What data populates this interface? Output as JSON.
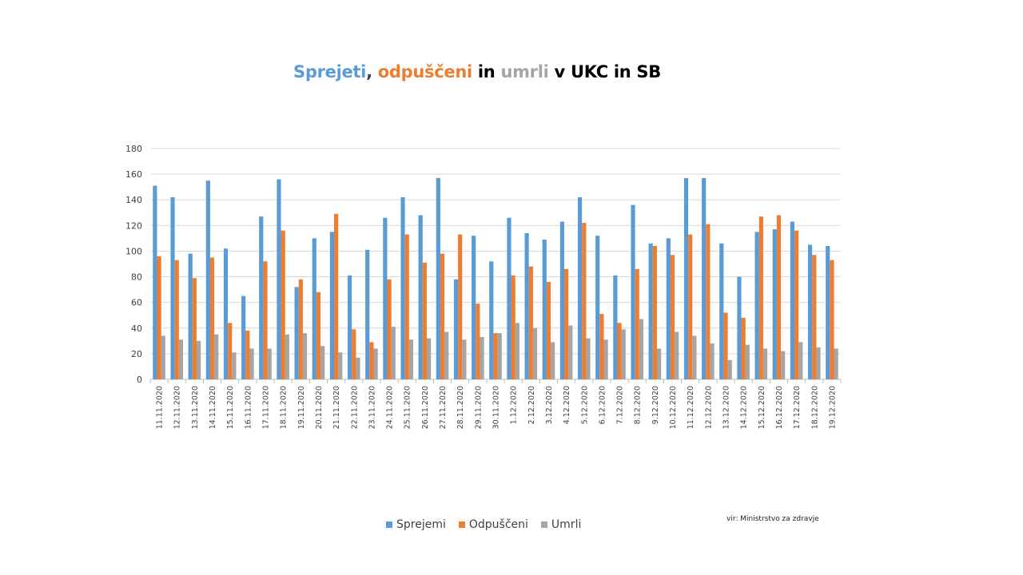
{
  "title_parts": [
    {
      "text": "Sprejeti",
      "color": "#5b9bd5"
    },
    {
      "text": ", ",
      "color": "#404040"
    },
    {
      "text": "odpuščeni",
      "color": "#ed7d31"
    },
    {
      "text": " in ",
      "color": "#000000"
    },
    {
      "text": "umrli",
      "color": "#a5a5a5"
    },
    {
      "text": " v UKC in SB",
      "color": "#000000"
    }
  ],
  "source": "vir: Ministrstvo za zdravje",
  "chart_data": {
    "type": "bar",
    "title": "Sprejeti, odpuščeni in umrli v UKC in SB",
    "xlabel": "",
    "ylabel": "",
    "ylim": [
      0,
      180
    ],
    "yticks": [
      0,
      20,
      40,
      60,
      80,
      100,
      120,
      140,
      160,
      180
    ],
    "grid": true,
    "legend": "bottom",
    "categories": [
      "11.11.2020",
      "12.11.2020",
      "13.11.2020",
      "14.11.2020",
      "15.11.2020",
      "16.11.2020",
      "17.11.2020",
      "18.11.2020",
      "19.11.2020",
      "20.11.2020",
      "21.11.2020",
      "22.11.2020",
      "23.11.2020",
      "24.11.2020",
      "25.11.2020",
      "26.11.2020",
      "27.11.2020",
      "28.11.2020",
      "29.11.2020",
      "30.11.2020",
      "1.12.2020",
      "2.12.2020",
      "3.12.2020",
      "4.12.2020",
      "5.12.2020",
      "6.12.2020",
      "7.12.2020",
      "8.12.2020",
      "9.12.2020",
      "10.12.2020",
      "11.12.2020",
      "12.12.2020",
      "13.12.2020",
      "14.12.2020",
      "15.12.2020",
      "16.12.2020",
      "17.12.2020",
      "18.12.2020",
      "19.12.2020"
    ],
    "series": [
      {
        "name": "Sprejemi",
        "color": "#5b9bd5",
        "values": [
          151,
          142,
          98,
          155,
          102,
          65,
          127,
          156,
          72,
          110,
          115,
          81,
          101,
          126,
          142,
          128,
          157,
          78,
          112,
          92,
          126,
          114,
          109,
          123,
          142,
          112,
          81,
          136,
          106,
          110,
          157,
          157,
          106,
          80,
          115,
          117,
          123,
          105,
          104
        ]
      },
      {
        "name": "Odpuščeni",
        "color": "#ed7d31",
        "values": [
          96,
          93,
          79,
          95,
          44,
          38,
          92,
          116,
          78,
          68,
          129,
          39,
          29,
          78,
          113,
          91,
          98,
          113,
          59,
          36,
          81,
          88,
          76,
          86,
          122,
          51,
          44,
          86,
          104,
          97,
          113,
          121,
          52,
          48,
          127,
          128,
          116,
          97,
          93
        ]
      },
      {
        "name": "Umrli",
        "color": "#a5a5a5",
        "values": [
          34,
          31,
          30,
          35,
          21,
          24,
          24,
          35,
          36,
          26,
          21,
          17,
          24,
          41,
          31,
          32,
          37,
          31,
          33,
          36,
          44,
          40,
          29,
          42,
          32,
          31,
          39,
          47,
          24,
          37,
          34,
          28,
          15,
          27,
          24,
          22,
          29,
          25,
          24
        ]
      }
    ]
  }
}
